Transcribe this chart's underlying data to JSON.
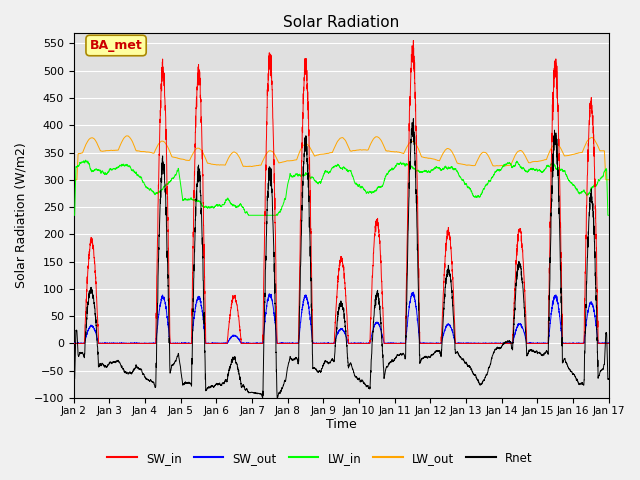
{
  "title": "Solar Radiation",
  "xlabel": "Time",
  "ylabel": "Solar Radiation (W/m2)",
  "ylim": [
    -100,
    570
  ],
  "yticks": [
    -100,
    -50,
    0,
    50,
    100,
    150,
    200,
    250,
    300,
    350,
    400,
    450,
    500,
    550
  ],
  "x_tick_labels": [
    "Jan 2",
    "Jan 3",
    "Jan 4",
    "Jan 5",
    "Jan 6",
    "Jan 7",
    "Jan 8",
    "Jan 9",
    "Jan 10",
    "Jan 11",
    "Jan 12",
    "Jan 13",
    "Jan 14",
    "Jan 15",
    "Jan 16",
    "Jan 17"
  ],
  "n_days": 15,
  "pts_per_day": 288,
  "annotation": "BA_met",
  "plot_bg_color": "#e0e0e0",
  "fig_bg_color": "#f0f0f0",
  "series_colors": {
    "SW_in": "#ff0000",
    "SW_out": "#0000ff",
    "LW_in": "#00ff00",
    "LW_out": "#ffa500",
    "Rnet": "#000000"
  },
  "sw_in_peaks": [
    190,
    0,
    500,
    500,
    85,
    525,
    510,
    155,
    225,
    540,
    205,
    0,
    210,
    510,
    440
  ],
  "lw_out_base": 340,
  "lw_in_base": 310,
  "grid_color": "#ffffff",
  "linewidth": 0.7
}
